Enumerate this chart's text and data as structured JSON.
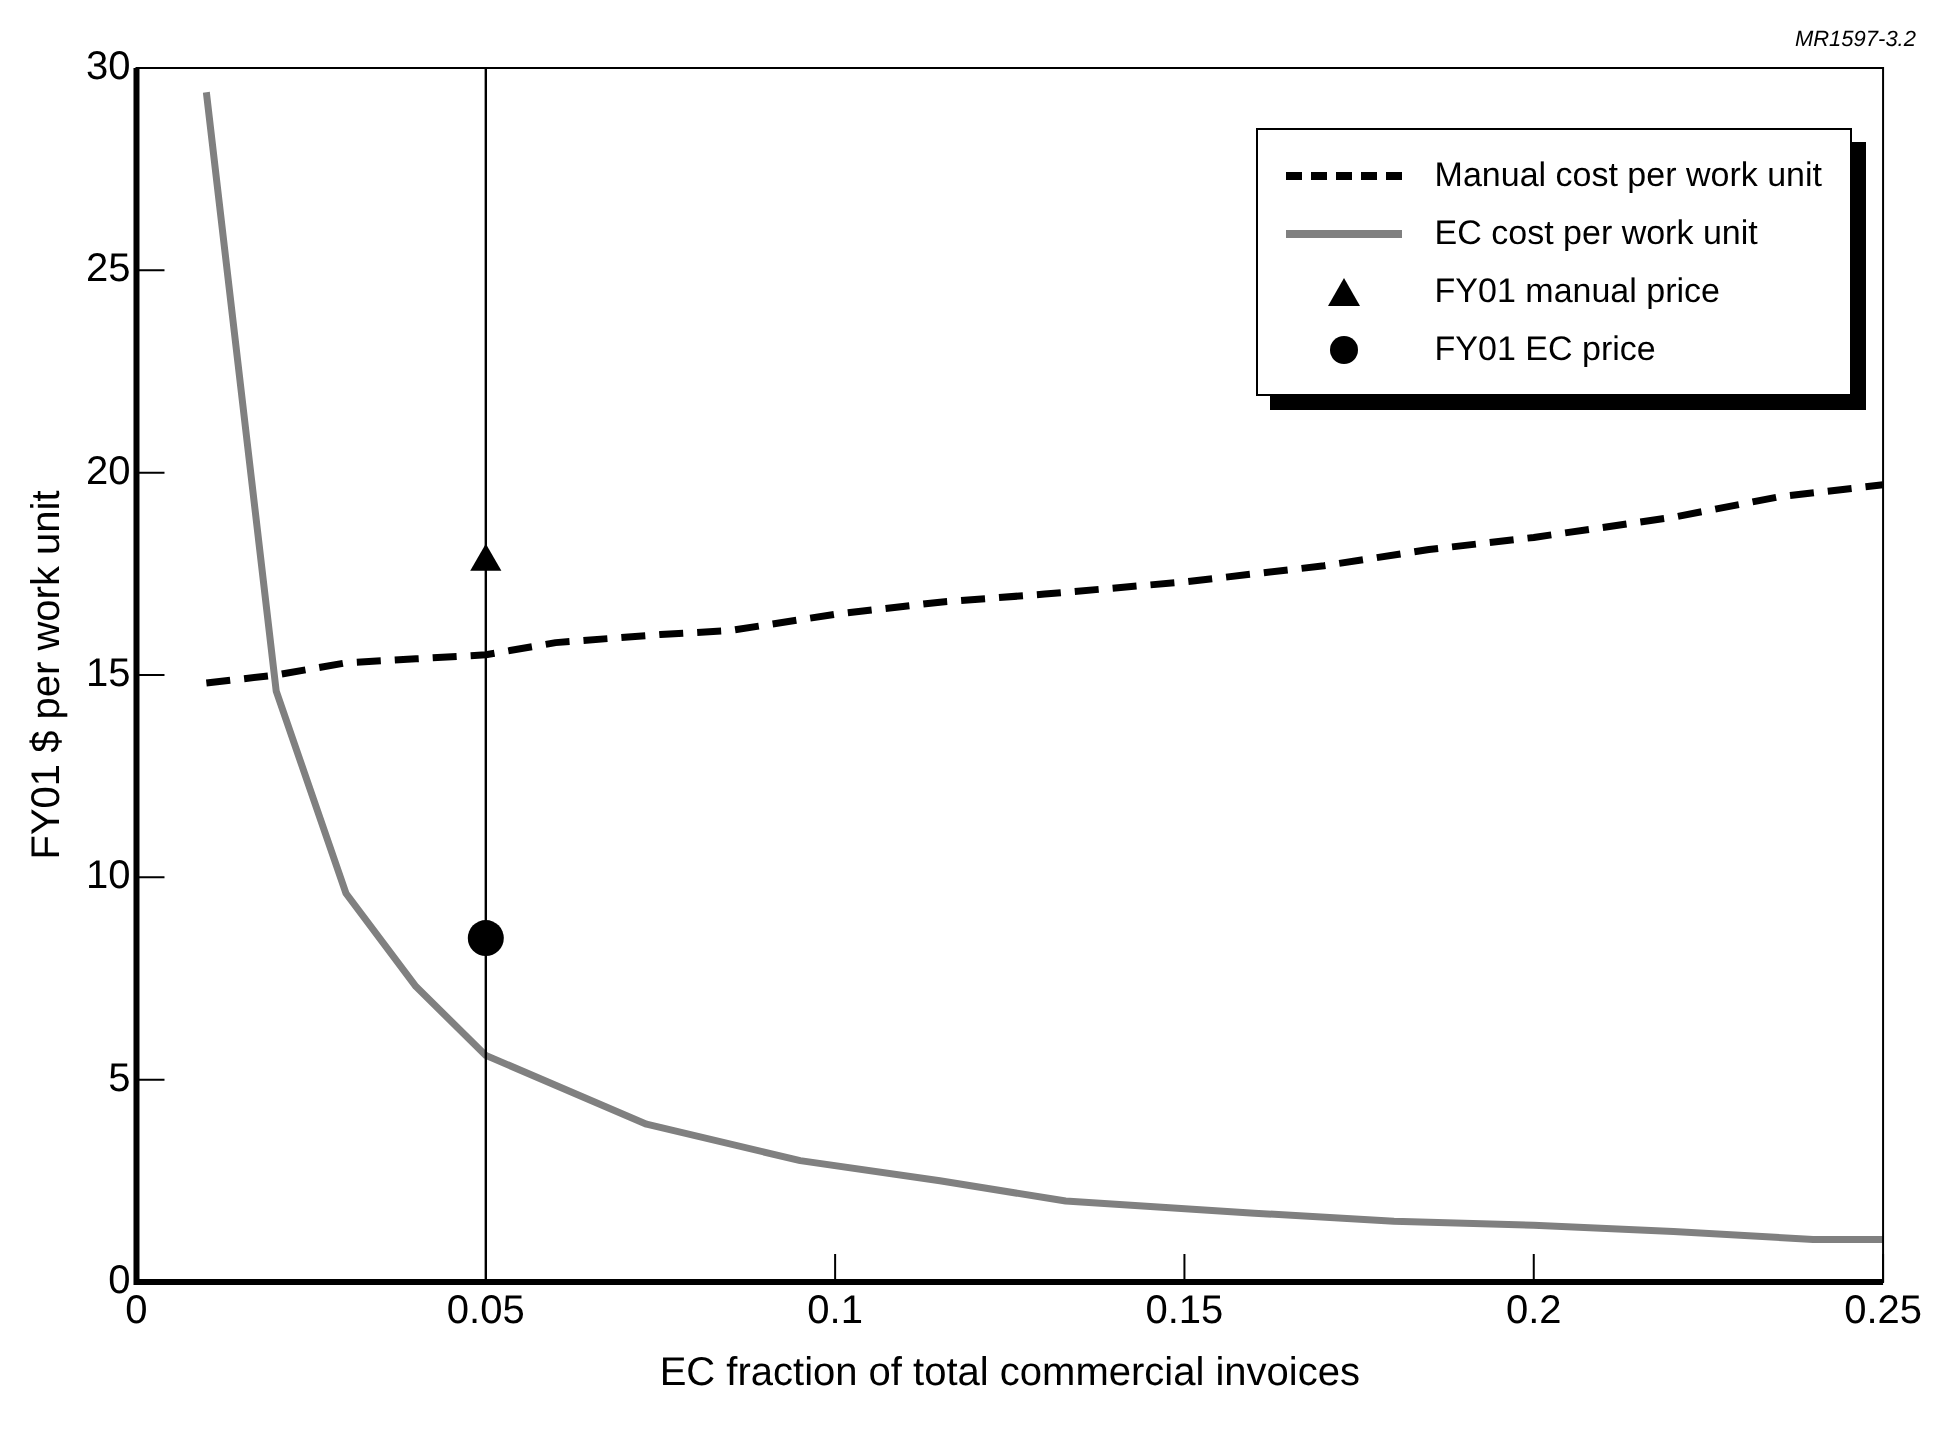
{
  "chart_data": {
    "type": "line",
    "xlabel": "EC fraction of total commercial invoices",
    "ylabel": "FY01 $ per work unit",
    "annotations": [
      "MR1597-3.2"
    ],
    "xlim": [
      0,
      0.25
    ],
    "xticks": [
      0,
      0.05,
      0.1,
      0.15,
      0.2,
      0.25
    ],
    "ylim": [
      0,
      30
    ],
    "yticks": [
      0,
      5,
      10,
      15,
      20,
      25,
      30
    ],
    "grid": false,
    "legend": "top right",
    "ref_lines": [
      {
        "axis": "x",
        "value": 0.05,
        "color": "#000000",
        "line_style": "solid"
      }
    ],
    "series": [
      {
        "name": "Manual cost per work unit",
        "type": "line",
        "color": "#000000",
        "line_style": "dashed",
        "marker": "none",
        "x": [
          0.01,
          0.02,
          0.03,
          0.04,
          0.05,
          0.06,
          0.075,
          0.085,
          0.1,
          0.115,
          0.13,
          0.15,
          0.17,
          0.185,
          0.2,
          0.22,
          0.235,
          0.25
        ],
        "values": [
          14.8,
          15.0,
          15.3,
          15.4,
          15.5,
          15.8,
          16.0,
          16.1,
          16.5,
          16.8,
          17.0,
          17.3,
          17.7,
          18.1,
          18.4,
          18.9,
          19.4,
          19.7
        ]
      },
      {
        "name": "EC cost per work unit",
        "type": "line",
        "color": "#808080",
        "line_style": "solid",
        "marker": "none",
        "x": [
          0.01,
          0.02,
          0.03,
          0.04,
          0.05,
          0.073,
          0.095,
          0.115,
          0.133,
          0.16,
          0.18,
          0.2,
          0.22,
          0.24,
          0.25
        ],
        "values": [
          29.4,
          14.6,
          9.6,
          7.3,
          5.6,
          3.9,
          3.0,
          2.5,
          2.0,
          1.7,
          1.5,
          1.4,
          1.25,
          1.05,
          1.05
        ]
      },
      {
        "name": "FY01 manual price",
        "type": "scatter",
        "color": "#000000",
        "marker": "triangle",
        "x": [
          0.05
        ],
        "values": [
          17.8
        ]
      },
      {
        "name": "FY01 EC price",
        "type": "scatter",
        "color": "#000000",
        "marker": "circle",
        "x": [
          0.05
        ],
        "values": [
          8.5
        ]
      }
    ]
  }
}
